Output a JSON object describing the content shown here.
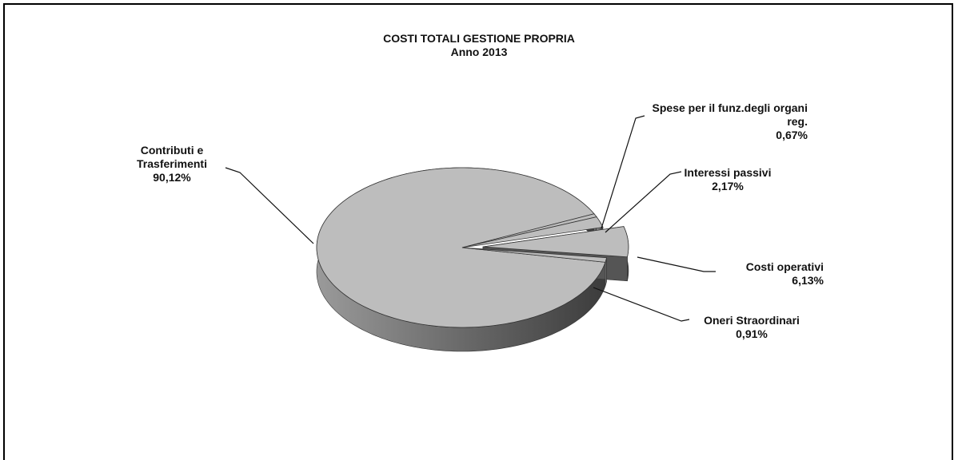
{
  "chart_data": {
    "type": "pie",
    "title": "COSTI TOTALI  GESTIONE PROPRIA",
    "subtitle": "Anno 2013",
    "categories": [
      "Contributi e Trasferimenti",
      "Spese per il funz.degli organi reg.",
      "Interessi passivi",
      "Costi operativi",
      "Oneri Straordinari"
    ],
    "values": [
      90.12,
      0.67,
      2.17,
      6.13,
      0.91
    ],
    "value_labels": [
      "90,12%",
      "0,67%",
      "2,17%",
      "6,13%",
      "0,91%"
    ],
    "colors": [
      "#bdbdbd",
      "#bdbdbd",
      "#bdbdbd",
      "#bdbdbd",
      "#bdbdbd"
    ]
  }
}
